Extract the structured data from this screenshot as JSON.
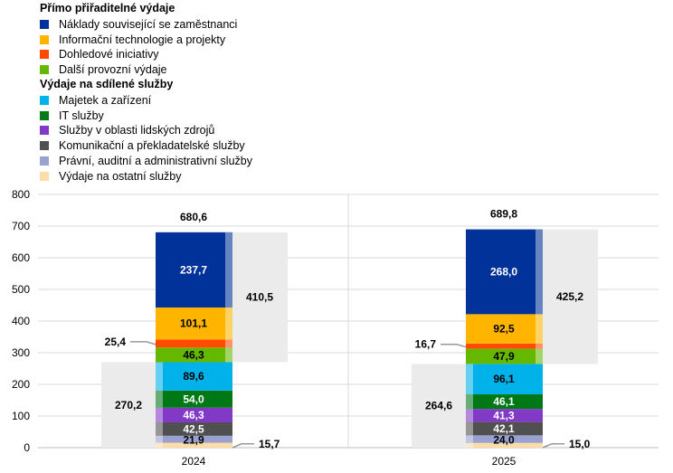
{
  "chart_data": {
    "type": "bar",
    "stacked": true,
    "categories": [
      "2024",
      "2025"
    ],
    "ylim": [
      0,
      800
    ],
    "yticks": [
      0,
      100,
      200,
      300,
      400,
      500,
      600,
      700,
      800
    ],
    "grid": true,
    "legend_placement": "top-left",
    "groups": [
      {
        "title": "Přímo přiřaditelné výdaje",
        "totals": [
          "410,5",
          "425,2"
        ]
      },
      {
        "title": "Výdaje na sdílené služby",
        "totals": [
          "270,2",
          "264,6"
        ]
      }
    ],
    "grand_totals": [
      "680,6",
      "689,8"
    ],
    "series": [
      {
        "name": "Náklady související se zaměstnanci",
        "group": 0,
        "color": "#003299",
        "values": [
          237.7,
          268.0
        ],
        "labels": [
          "237,7",
          "268,0"
        ]
      },
      {
        "name": "Informační technologie a projekty",
        "group": 0,
        "color": "#FFB400",
        "values": [
          101.1,
          92.5
        ],
        "labels": [
          "101,1",
          "92,5"
        ]
      },
      {
        "name": "Dohledové iniciativy",
        "group": 0,
        "color": "#FF4B00",
        "values": [
          25.4,
          16.7
        ],
        "labels": [
          "25,4",
          "16,7"
        ]
      },
      {
        "name": "Další provozní výdaje",
        "group": 0,
        "color": "#65B800",
        "values": [
          46.3,
          47.9
        ],
        "labels": [
          "46,3",
          "47,9"
        ]
      },
      {
        "name": "Majetek a zařízení",
        "group": 1,
        "color": "#00B1EA",
        "values": [
          89.6,
          96.1
        ],
        "labels": [
          "89,6",
          "96,1"
        ]
      },
      {
        "name": "IT služby",
        "group": 1,
        "color": "#007816",
        "values": [
          54.0,
          46.1
        ],
        "labels": [
          "54,0",
          "46,1"
        ]
      },
      {
        "name": "Služby v oblasti lidských zdrojů",
        "group": 1,
        "color": "#8139C6",
        "values": [
          46.3,
          41.3
        ],
        "labels": [
          "46,3",
          "41,3"
        ]
      },
      {
        "name": "Komunikační a překladatelské služby",
        "group": 1,
        "color": "#505050",
        "values": [
          42.5,
          42.1
        ],
        "labels": [
          "42,5",
          "42,1"
        ]
      },
      {
        "name": "Právní, auditní a administrativní služby",
        "group": 1,
        "color": "#98A1D0",
        "values": [
          21.9,
          24.0
        ],
        "labels": [
          "21,9",
          "24,0"
        ]
      },
      {
        "name": "Výdaje na ostatní služby",
        "group": 1,
        "color": "#FDDDA7",
        "values": [
          15.7,
          15.0
        ],
        "labels": [
          "15,7",
          "15,0"
        ]
      }
    ]
  }
}
